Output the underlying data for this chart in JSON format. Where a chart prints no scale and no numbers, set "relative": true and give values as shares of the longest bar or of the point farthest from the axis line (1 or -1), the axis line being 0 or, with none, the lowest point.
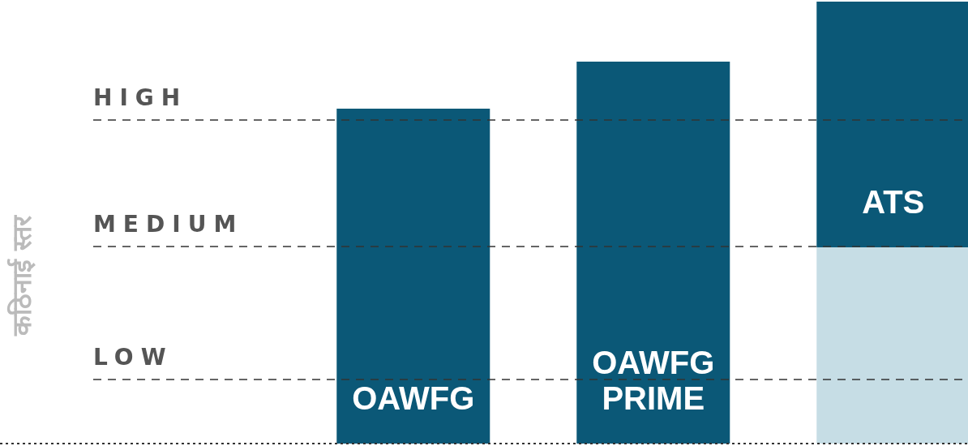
{
  "chart_data": {
    "type": "bar",
    "annotations": [
      "कठिनाई स्तर"
    ],
    "categories": [
      "OAWFG",
      "OAWFG PRIME",
      "ATS"
    ],
    "stacked": true,
    "relative": true,
    "series": [
      {
        "color": "#c6dde5",
        "values": [
          0,
          0,
          0.444
        ]
      },
      {
        "color": "#0b5877",
        "values": [
          0.758,
          0.864,
          0.556
        ]
      }
    ],
    "ref_lines": [
      {
        "axis": "y",
        "value": 0.732,
        "label": "HIGH",
        "line_style": "dashed"
      },
      {
        "axis": "y",
        "value": 0.446,
        "label": "MEDIUM",
        "line_style": "dashed"
      },
      {
        "axis": "y",
        "value": 0.145,
        "label": "LOW",
        "line_style": "dashed"
      }
    ],
    "grid": false,
    "legend": false
  }
}
